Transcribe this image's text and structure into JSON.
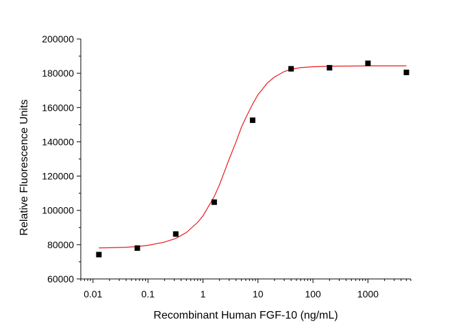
{
  "chart_data": {
    "type": "scatter",
    "xlabel": "Recombinant Human FGF-10 (ng/mL)",
    "ylabel": "Relative Fluorescence Units",
    "x_scale": "log",
    "xlim": [
      0.006,
      6000
    ],
    "ylim": [
      60000,
      200000
    ],
    "x_ticks": [
      0.01,
      0.1,
      1,
      10,
      100,
      1000
    ],
    "x_tick_labels": [
      "0.01",
      "0.1",
      "1",
      "10",
      "100",
      "1000"
    ],
    "y_ticks": [
      60000,
      80000,
      100000,
      120000,
      140000,
      160000,
      180000,
      200000
    ],
    "y_tick_labels": [
      "60000",
      "80000",
      "100000",
      "120000",
      "140000",
      "160000",
      "180000",
      "200000"
    ],
    "grid": false,
    "series": [
      {
        "type": "scatter",
        "color": "#000000",
        "marker": "square",
        "points": [
          {
            "x": 0.0128,
            "y": 74200
          },
          {
            "x": 0.064,
            "y": 78000
          },
          {
            "x": 0.32,
            "y": 86200
          },
          {
            "x": 1.6,
            "y": 104800
          },
          {
            "x": 8,
            "y": 152600
          },
          {
            "x": 40,
            "y": 182600
          },
          {
            "x": 200,
            "y": 183200
          },
          {
            "x": 1000,
            "y": 185800
          },
          {
            "x": 5000,
            "y": 180500
          }
        ]
      },
      {
        "type": "line",
        "color": "#e8191d",
        "x": [
          0.0128,
          0.02,
          0.04,
          0.064,
          0.1,
          0.2,
          0.32,
          0.5,
          0.8,
          1,
          1.6,
          2,
          3,
          4,
          5,
          6,
          8,
          10,
          15,
          20,
          30,
          40,
          60,
          100,
          200,
          400,
          1000,
          2000,
          5000
        ],
        "y": [
          78100,
          78200,
          78500,
          78900,
          79600,
          81500,
          83600,
          87100,
          93000,
          96800,
          108000,
          115000,
          130000,
          140000,
          148500,
          154000,
          162000,
          167500,
          174500,
          177800,
          181000,
          182300,
          183300,
          183800,
          184100,
          184200,
          184300,
          184300,
          184300
        ]
      }
    ]
  }
}
